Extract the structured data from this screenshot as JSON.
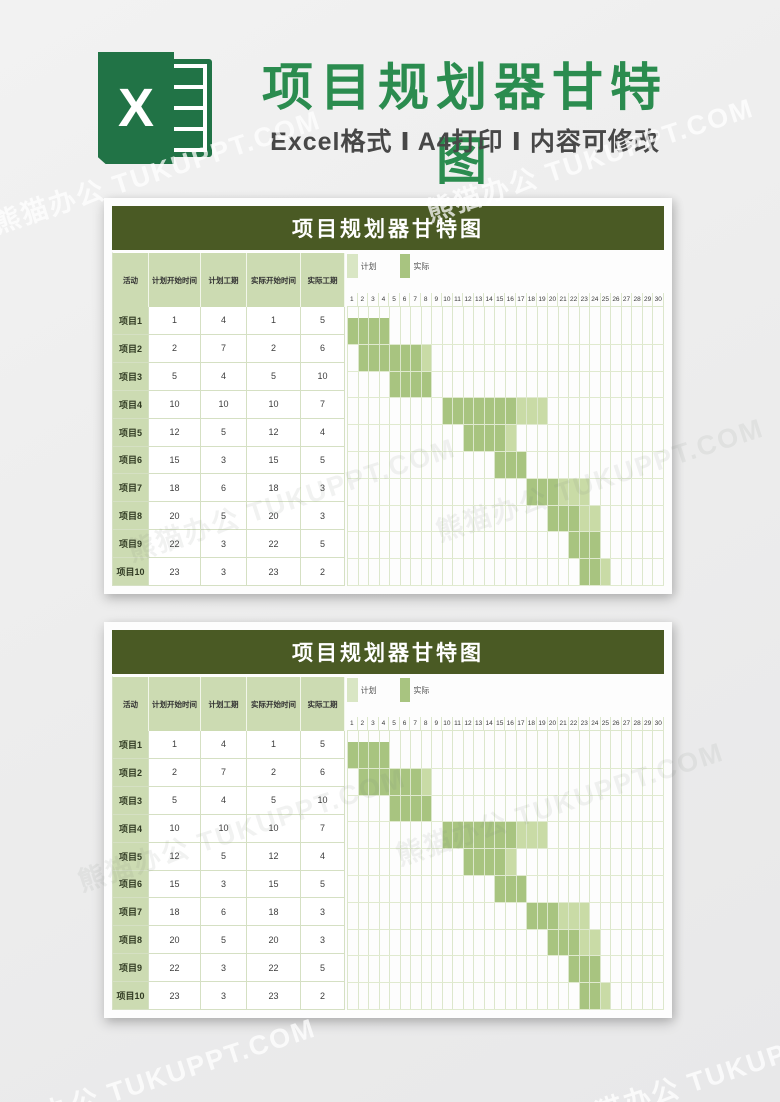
{
  "watermark": {
    "text": "熊猫办公 TUKUPPT.COM"
  },
  "header": {
    "logo_letter": "X",
    "title": "项目规划器甘特图",
    "subtitle": "Excel格式 Ⅰ A4打印 Ⅰ 内容可修改"
  },
  "sheet": {
    "title": "项目规划器甘特图",
    "columns": [
      "活动",
      "计划开始时间",
      "计划工期",
      "实际开始时间",
      "实际工期"
    ],
    "legend": [
      {
        "label": "计划",
        "color": "#d9e6c4"
      },
      {
        "label": "实际",
        "color": "#a8c480"
      }
    ],
    "days": [
      "1",
      "2",
      "3",
      "4",
      "5",
      "6",
      "7",
      "8",
      "9",
      "10",
      "11",
      "12",
      "13",
      "14",
      "15",
      "16",
      "17",
      "18",
      "19",
      "20",
      "21",
      "22",
      "23",
      "24",
      "25",
      "26",
      "27",
      "28",
      "29",
      "30"
    ],
    "rows": [
      {
        "name": "项目1",
        "plan_start": 1,
        "plan_duration": 4,
        "actual_start": 1,
        "actual_duration": 5
      },
      {
        "name": "项目2",
        "plan_start": 2,
        "plan_duration": 7,
        "actual_start": 2,
        "actual_duration": 6
      },
      {
        "name": "项目3",
        "plan_start": 5,
        "plan_duration": 4,
        "actual_start": 5,
        "actual_duration": 10
      },
      {
        "name": "项目4",
        "plan_start": 10,
        "plan_duration": 10,
        "actual_start": 10,
        "actual_duration": 7
      },
      {
        "name": "项目5",
        "plan_start": 12,
        "plan_duration": 5,
        "actual_start": 12,
        "actual_duration": 4
      },
      {
        "name": "项目6",
        "plan_start": 15,
        "plan_duration": 3,
        "actual_start": 15,
        "actual_duration": 5
      },
      {
        "name": "项目7",
        "plan_start": 18,
        "plan_duration": 6,
        "actual_start": 18,
        "actual_duration": 3
      },
      {
        "name": "项目8",
        "plan_start": 20,
        "plan_duration": 5,
        "actual_start": 20,
        "actual_duration": 3
      },
      {
        "name": "项目9",
        "plan_start": 22,
        "plan_duration": 3,
        "actual_start": 22,
        "actual_duration": 5
      },
      {
        "name": "项目10",
        "plan_start": 23,
        "plan_duration": 3,
        "actual_start": 23,
        "actual_duration": 2
      }
    ]
  },
  "colors": {
    "title_green": "#2b8c4f",
    "excel_green": "#217346",
    "panel_title_bg": "#4a5a24",
    "header_cell_bg": "#ccdbb2",
    "bar_overlap": "#a8c480",
    "bar_plan_only": "#c9dba6",
    "legend_plan": "#d9e6c4",
    "grid_line": "#dce7cc"
  }
}
